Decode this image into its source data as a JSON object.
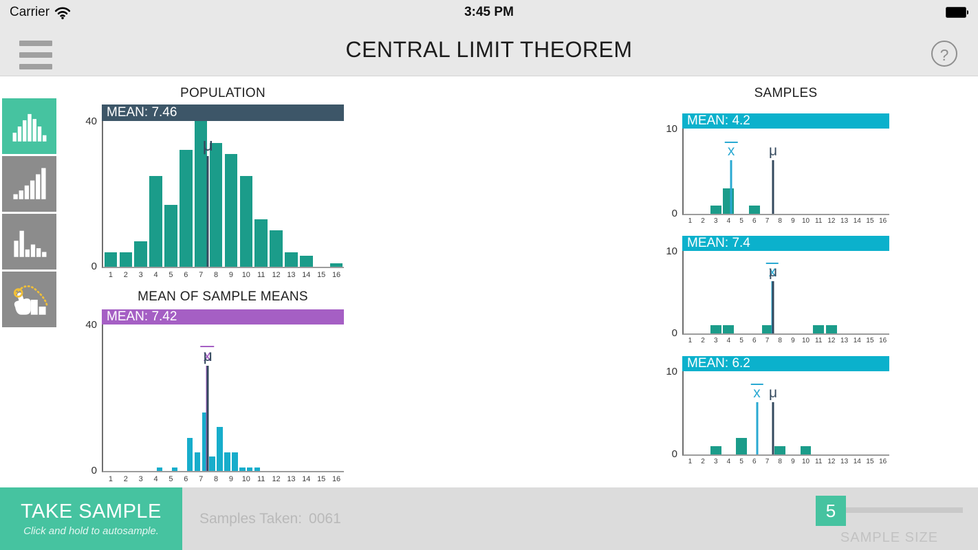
{
  "status_bar": {
    "carrier": "Carrier",
    "time": "3:45 PM"
  },
  "header": {
    "title": "CENTRAL LIMIT THEOREM",
    "help_label": "?"
  },
  "colors": {
    "accent_teal": "#46c3a0",
    "sidebar_gray": "#8c8c8c",
    "population_navy": "#3d5668",
    "purple": "#a55fc4",
    "cyan": "#0bb1cc",
    "bar_green": "#1b9c8a",
    "marker_navy": "#34495e",
    "marker_cyan": "#2aa9d2"
  },
  "sidebar": {
    "items": [
      {
        "name": "normal-distribution",
        "selected": true,
        "bg": "#46c3a0"
      },
      {
        "name": "right-skewed-distribution",
        "selected": false,
        "bg": "#8c8c8c"
      },
      {
        "name": "random-distribution",
        "selected": false,
        "bg": "#8c8c8c"
      },
      {
        "name": "draw-custom-distribution",
        "selected": false,
        "bg": "#8c8c8c"
      }
    ]
  },
  "samples_section": {
    "title": "SAMPLES"
  },
  "chart_data": [
    {
      "id": "population",
      "type": "bar",
      "title": "POPULATION",
      "mean_label": "MEAN: 7.46",
      "mean": 7.46,
      "header_color": "#3d5668",
      "bar_color": "#1b9c8a",
      "xlim": [
        0.5,
        16.5
      ],
      "ylim": [
        0,
        40
      ],
      "ytick_labels": [
        "0",
        "40"
      ],
      "x_tick_labels": [
        "1",
        "2",
        "3",
        "4",
        "5",
        "6",
        "7",
        "8",
        "9",
        "10",
        "11",
        "12",
        "13",
        "14",
        "15",
        "16"
      ],
      "values": [
        4,
        4,
        7,
        25,
        17,
        32,
        40,
        34,
        31,
        25,
        13,
        10,
        4,
        3,
        0,
        1
      ],
      "bar_width": 0.85,
      "marker_line_frac": 0.76,
      "markers": [
        {
          "name": "mu",
          "glyph": "μ",
          "x": 7.46,
          "color": "#34495e",
          "overline": false
        }
      ]
    },
    {
      "id": "sample-means",
      "type": "bar",
      "title": "MEAN OF SAMPLE MEANS",
      "mean_label": "MEAN: 7.42",
      "mean": 7.42,
      "header_color": "#a55fc4",
      "bar_color": "#17adcb",
      "xlim": [
        0.5,
        16.5
      ],
      "ylim": [
        0,
        40
      ],
      "ytick_labels": [
        "0",
        "40"
      ],
      "x_tick_labels": [
        "1",
        "2",
        "3",
        "4",
        "5",
        "6",
        "7",
        "8",
        "9",
        "10",
        "11",
        "12",
        "13",
        "14",
        "15",
        "16"
      ],
      "bins": [
        [
          4.25,
          1
        ],
        [
          5.25,
          1
        ],
        [
          6.25,
          9
        ],
        [
          6.75,
          5
        ],
        [
          7.25,
          16
        ],
        [
          7.75,
          4
        ],
        [
          8.25,
          12
        ],
        [
          8.75,
          5
        ],
        [
          9.25,
          5
        ],
        [
          9.75,
          1
        ],
        [
          10.25,
          1
        ],
        [
          10.75,
          1
        ]
      ],
      "bar_width": 0.38,
      "marker_line_frac": 0.72,
      "markers": [
        {
          "name": "x-bar",
          "glyph": "x",
          "x": 7.42,
          "color": "#a55fc4",
          "overline": true
        },
        {
          "name": "mu",
          "glyph": "μ",
          "x": 7.46,
          "color": "#34495e",
          "overline": false
        }
      ]
    },
    {
      "id": "sample-1",
      "type": "bar",
      "mean_label": "MEAN: 4.2",
      "mean": 4.2,
      "header_color": "#0bb1cc",
      "bar_color": "#1b9c8a",
      "xlim": [
        0.5,
        16.5
      ],
      "ylim": [
        0,
        10
      ],
      "ytick_labels": [
        "0",
        "10"
      ],
      "x_tick_labels": [
        "1",
        "2",
        "3",
        "4",
        "5",
        "6",
        "7",
        "8",
        "9",
        "10",
        "11",
        "12",
        "13",
        "14",
        "15",
        "16"
      ],
      "values": [
        0,
        0,
        1,
        3,
        0,
        1,
        0,
        0,
        0,
        0,
        0,
        0,
        0,
        0,
        0,
        0
      ],
      "bar_width": 0.85,
      "marker_line_frac": 0.63,
      "markers": [
        {
          "name": "x-bar",
          "glyph": "x",
          "x": 4.2,
          "color": "#2aa9d2",
          "overline": true
        },
        {
          "name": "mu",
          "glyph": "μ",
          "x": 7.46,
          "color": "#34495e",
          "overline": false
        }
      ]
    },
    {
      "id": "sample-2",
      "type": "bar",
      "mean_label": "MEAN: 7.4",
      "mean": 7.4,
      "header_color": "#0bb1cc",
      "bar_color": "#1b9c8a",
      "xlim": [
        0.5,
        16.5
      ],
      "ylim": [
        0,
        10
      ],
      "ytick_labels": [
        "0",
        "10"
      ],
      "x_tick_labels": [
        "1",
        "2",
        "3",
        "4",
        "5",
        "6",
        "7",
        "8",
        "9",
        "10",
        "11",
        "12",
        "13",
        "14",
        "15",
        "16"
      ],
      "values": [
        0,
        0,
        1,
        1,
        0,
        0,
        1,
        0,
        0,
        0,
        1,
        1,
        0,
        0,
        0,
        0
      ],
      "bar_width": 0.85,
      "marker_line_frac": 0.63,
      "markers": [
        {
          "name": "x-bar",
          "glyph": "x",
          "x": 7.4,
          "color": "#2aa9d2",
          "overline": true
        },
        {
          "name": "mu",
          "glyph": "μ",
          "x": 7.46,
          "color": "#34495e",
          "overline": false
        }
      ]
    },
    {
      "id": "sample-3",
      "type": "bar",
      "mean_label": "MEAN: 6.2",
      "mean": 6.2,
      "header_color": "#0bb1cc",
      "bar_color": "#1b9c8a",
      "xlim": [
        0.5,
        16.5
      ],
      "ylim": [
        0,
        10
      ],
      "ytick_labels": [
        "0",
        "10"
      ],
      "x_tick_labels": [
        "1",
        "2",
        "3",
        "4",
        "5",
        "6",
        "7",
        "8",
        "9",
        "10",
        "11",
        "12",
        "13",
        "14",
        "15",
        "16"
      ],
      "values": [
        0,
        0,
        1,
        0,
        2,
        0,
        0,
        1,
        0,
        1,
        0,
        0,
        0,
        0,
        0,
        0
      ],
      "bar_width": 0.85,
      "marker_line_frac": 0.63,
      "markers": [
        {
          "name": "x-bar",
          "glyph": "x",
          "x": 6.2,
          "color": "#2aa9d2",
          "overline": true
        },
        {
          "name": "mu",
          "glyph": "μ",
          "x": 7.46,
          "color": "#34495e",
          "overline": false
        }
      ]
    }
  ],
  "footer": {
    "take_sample_label": "TAKE SAMPLE",
    "autosample_hint": "Click and hold to autosample.",
    "samples_taken_label": "Samples Taken:",
    "samples_taken_value": "0061",
    "sample_size_value": "5",
    "sample_size_label": "SAMPLE SIZE"
  }
}
